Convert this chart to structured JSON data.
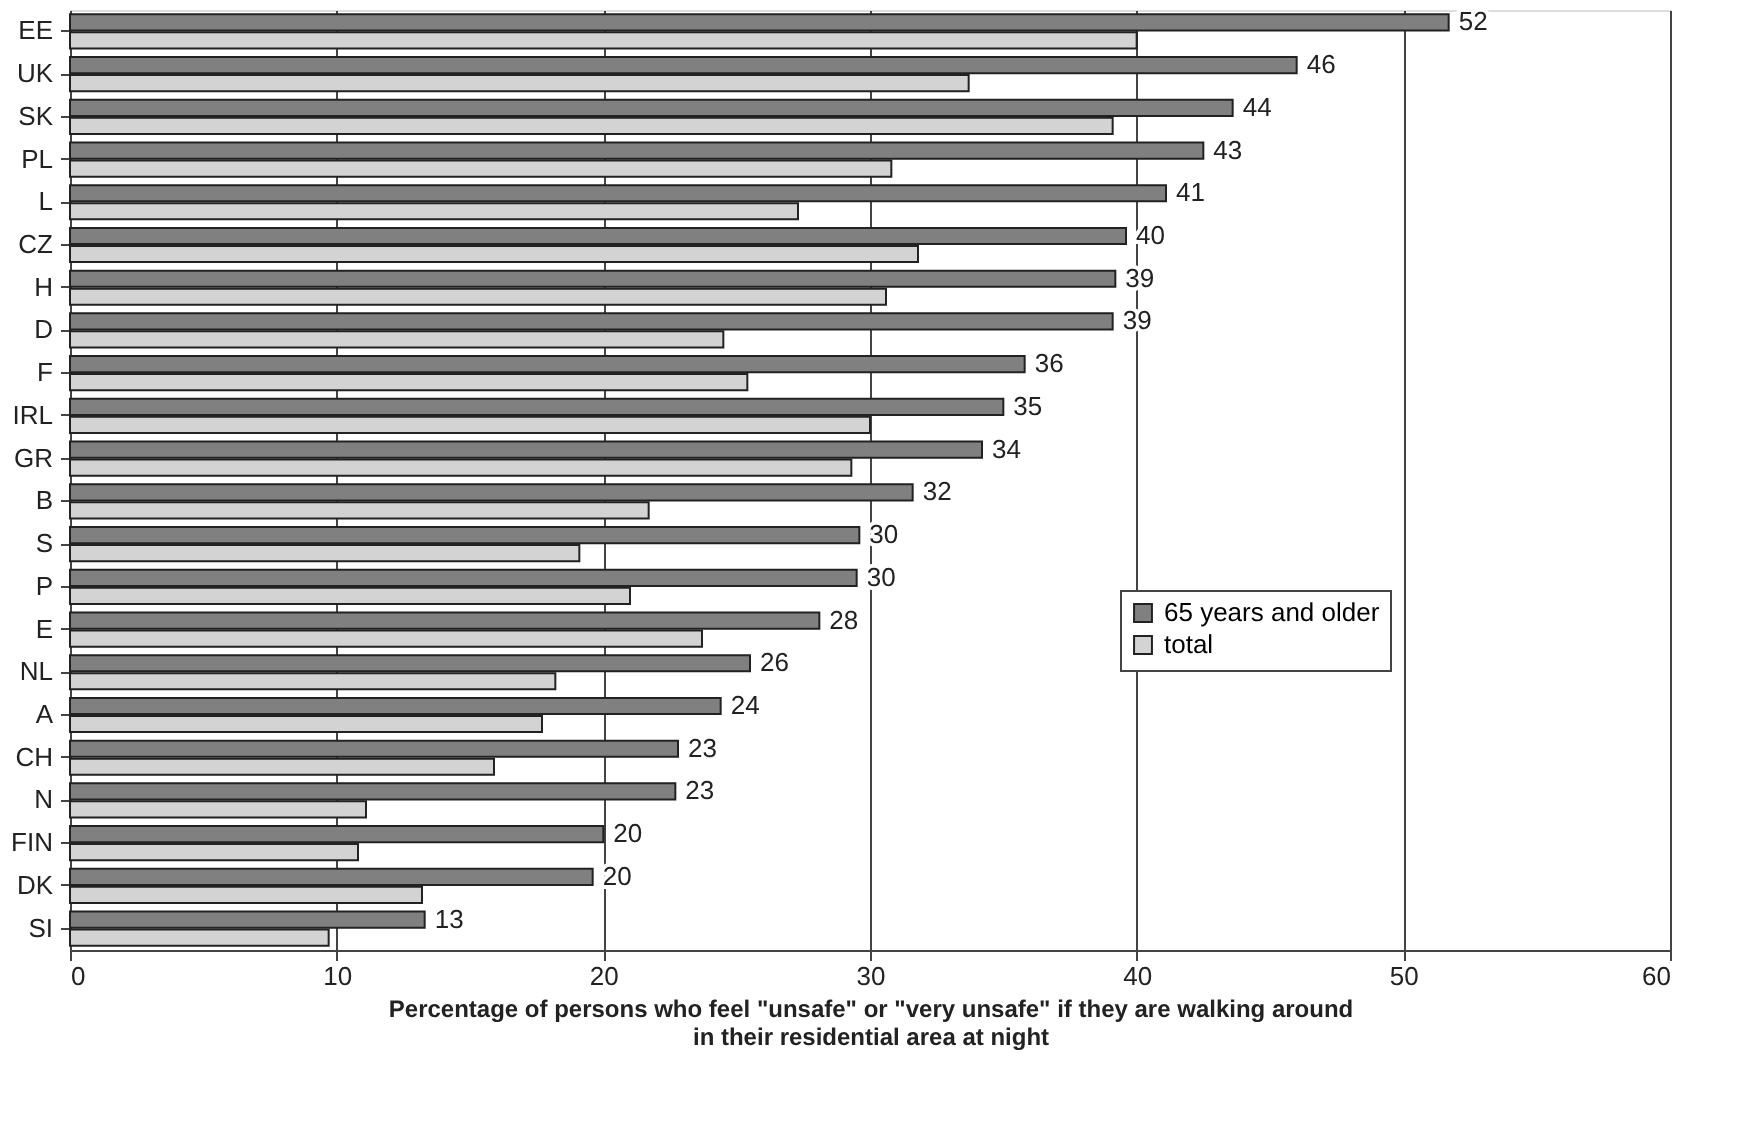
{
  "chart_data": {
    "type": "bar",
    "orientation": "horizontal",
    "xlabel": "Percentage of persons who feel \"unsafe\" or \"very unsafe\" if they are walking around\nin their residential area at night",
    "categories": [
      "EE",
      "UK",
      "SK",
      "PL",
      "L",
      "CZ",
      "H",
      "D",
      "F",
      "IRL",
      "GR",
      "B",
      "S",
      "P",
      "E",
      "NL",
      "A",
      "CH",
      "N",
      "FIN",
      "DK",
      "SI"
    ],
    "series": [
      {
        "name": "65 years and older",
        "color": "#808080",
        "values": [
          51.7,
          46.0,
          43.6,
          42.5,
          41.1,
          39.6,
          39.2,
          39.1,
          35.8,
          35.0,
          34.2,
          31.6,
          29.6,
          29.5,
          28.1,
          25.5,
          24.4,
          22.8,
          22.7,
          20.0,
          19.6,
          13.3
        ],
        "value_labels": [
          "52",
          "46",
          "44",
          "43",
          "41",
          "40",
          "39",
          "39",
          "36",
          "35",
          "34",
          "32",
          "30",
          "30",
          "28",
          "26",
          "24",
          "23",
          "23",
          "20",
          "20",
          "13"
        ]
      },
      {
        "name": "total",
        "color": "#d3d3d3",
        "values": [
          40.0,
          33.7,
          39.1,
          30.8,
          27.3,
          31.8,
          30.6,
          24.5,
          25.4,
          30.0,
          29.3,
          21.7,
          19.1,
          21.0,
          23.7,
          18.2,
          17.7,
          15.9,
          11.1,
          10.8,
          13.2,
          9.7
        ]
      }
    ],
    "xlim": [
      0,
      60
    ],
    "xticks": [
      0,
      10,
      20,
      30,
      40,
      50,
      60
    ],
    "grid": "x",
    "legend": "bottom right"
  }
}
